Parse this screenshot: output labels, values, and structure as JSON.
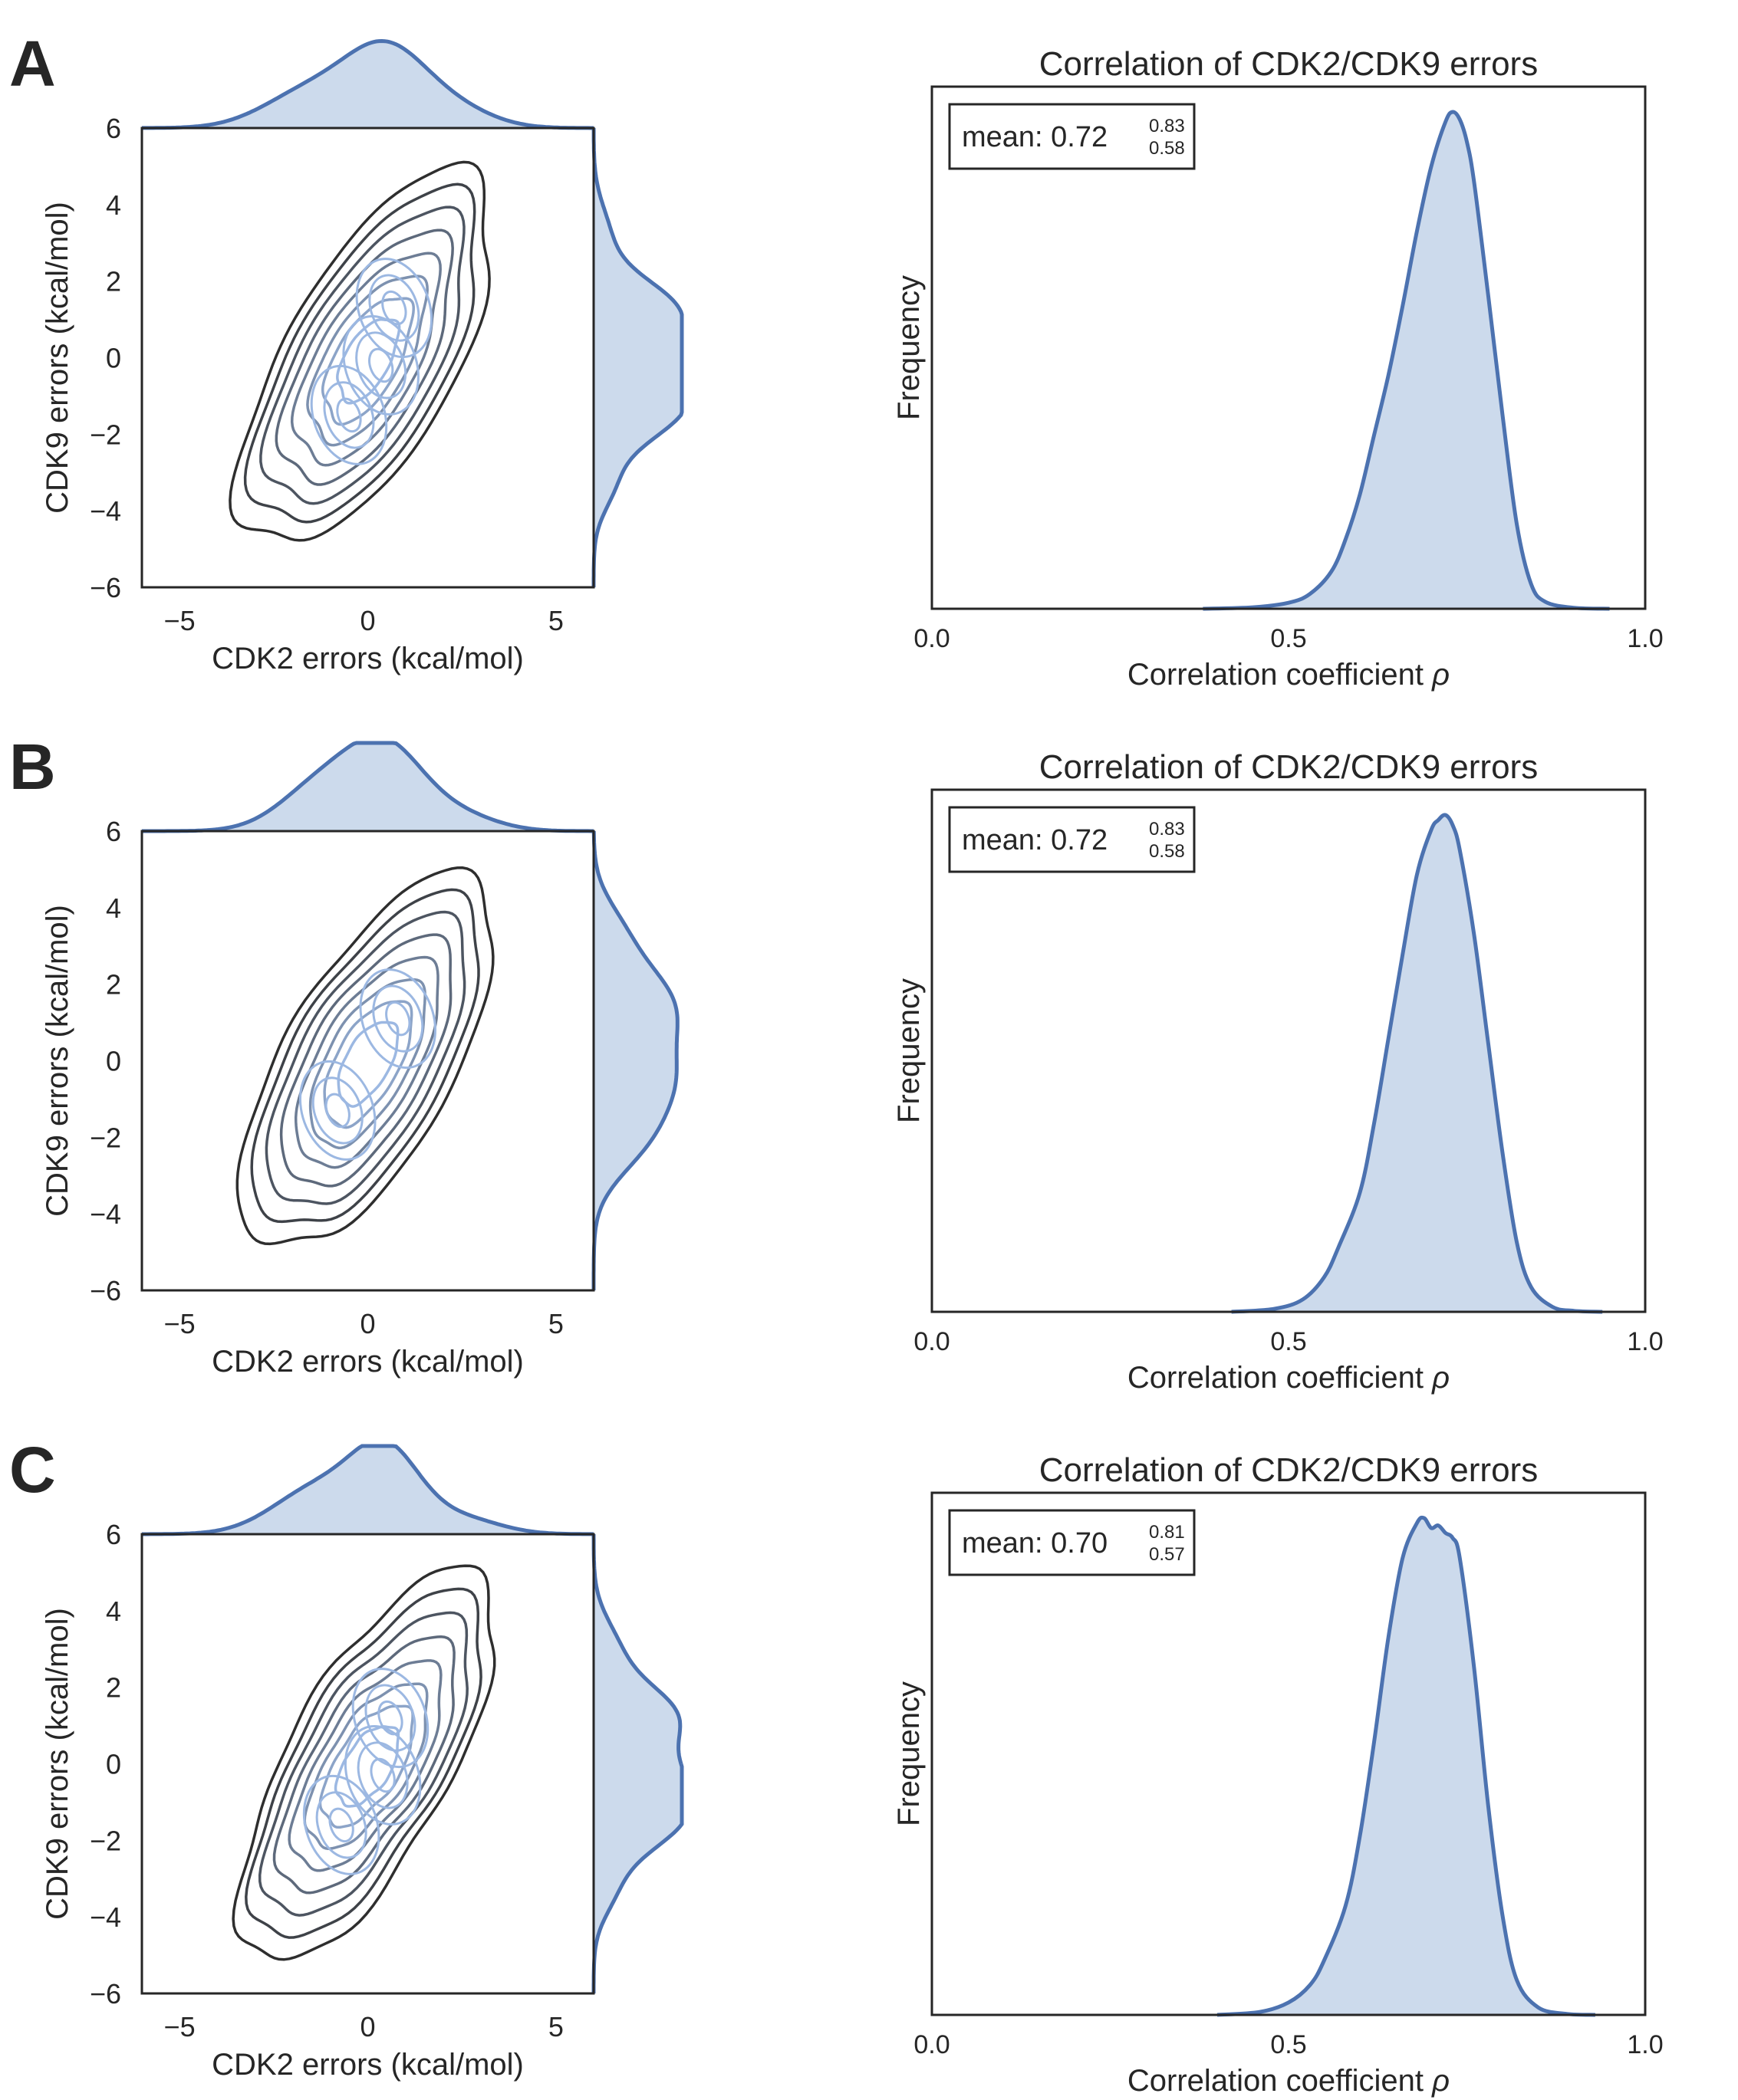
{
  "panels": [
    {
      "letter": "A",
      "jointplot": {
        "xlabel": "CDK2 errors (kcal/mol)",
        "ylabel": "CDK9 errors (kcal/mol)",
        "xticks": [
          "−5",
          "0",
          "5"
        ],
        "yticks": [
          "6",
          "4",
          "2",
          "0",
          "−2",
          "−4",
          "−6"
        ]
      },
      "histogram": {
        "title": "Correlation of CDK2/CDK9 errors",
        "xlabel": "Correlation coefficient",
        "xlabel_symbol": "ρ",
        "ylabel": "Frequency",
        "xticks": [
          "0.0",
          "0.5",
          "1.0"
        ],
        "mean_prefix": "mean: ",
        "mean": "0.72",
        "upper": "0.83",
        "lower": "0.58"
      }
    },
    {
      "letter": "B",
      "jointplot": {
        "xlabel": "CDK2 errors (kcal/mol)",
        "ylabel": "CDK9 errors (kcal/mol)",
        "xticks": [
          "−5",
          "0",
          "5"
        ],
        "yticks": [
          "6",
          "4",
          "2",
          "0",
          "−2",
          "−4",
          "−6"
        ]
      },
      "histogram": {
        "title": "Correlation of CDK2/CDK9 errors",
        "xlabel": "Correlation coefficient",
        "xlabel_symbol": "ρ",
        "ylabel": "Frequency",
        "xticks": [
          "0.0",
          "0.5",
          "1.0"
        ],
        "mean_prefix": "mean: ",
        "mean": "0.72",
        "upper": "0.83",
        "lower": "0.58"
      }
    },
    {
      "letter": "C",
      "jointplot": {
        "xlabel": "CDK2 errors (kcal/mol)",
        "ylabel": "CDK9 errors (kcal/mol)",
        "xticks": [
          "−5",
          "0",
          "5"
        ],
        "yticks": [
          "6",
          "4",
          "2",
          "0",
          "−2",
          "−4",
          "−6"
        ]
      },
      "histogram": {
        "title": "Correlation of CDK2/CDK9 errors",
        "xlabel": "Correlation coefficient",
        "xlabel_symbol": "ρ",
        "ylabel": "Frequency",
        "xticks": [
          "0.0",
          "0.5",
          "1.0"
        ],
        "mean_prefix": "mean: ",
        "mean": "0.70",
        "upper": "0.81",
        "lower": "0.57"
      }
    }
  ],
  "colors": {
    "line": "#4c72b0",
    "fill": "#ccdaec",
    "dark_contour": "#2e2e2e",
    "light_contour": "#9cb8e2",
    "axis": "#262626"
  },
  "chart_data": [
    {
      "type": "kde-contour-jointplot",
      "panel": "A",
      "xlabel": "CDK2 errors (kcal/mol)",
      "ylabel": "CDK9 errors (kcal/mol)",
      "xlim": [
        -6,
        6
      ],
      "ylim": [
        -6,
        6
      ],
      "xticks": [
        -5,
        0,
        5
      ],
      "yticks": [
        6,
        4,
        2,
        0,
        -2,
        -4,
        -6
      ],
      "contour_levels": 8,
      "modes": [
        {
          "x": 0.7,
          "y": 1.3
        },
        {
          "x": 0.35,
          "y": -0.2
        },
        {
          "x": -0.5,
          "y": -1.5
        }
      ],
      "correlation_direction": "positive"
    },
    {
      "type": "area",
      "panel": "A",
      "title": "Correlation of CDK2/CDK9 errors",
      "xlabel": "Correlation coefficient ρ",
      "ylabel": "Frequency",
      "xlim": [
        0.0,
        1.0
      ],
      "xticks": [
        0.0,
        0.5,
        1.0
      ],
      "x": [
        0.38,
        0.45,
        0.5,
        0.53,
        0.56,
        0.58,
        0.6,
        0.62,
        0.64,
        0.66,
        0.68,
        0.7,
        0.72,
        0.73,
        0.74,
        0.75,
        0.76,
        0.78,
        0.8,
        0.82,
        0.84,
        0.86,
        0.9,
        0.95
      ],
      "y": [
        0.0,
        0.003,
        0.012,
        0.03,
        0.075,
        0.14,
        0.23,
        0.35,
        0.47,
        0.61,
        0.76,
        0.89,
        0.98,
        1.0,
        0.985,
        0.94,
        0.86,
        0.63,
        0.39,
        0.17,
        0.05,
        0.014,
        0.002,
        0.0
      ],
      "annotation": {
        "mean": 0.72,
        "upper": 0.83,
        "lower": 0.58
      }
    },
    {
      "type": "kde-contour-jointplot",
      "panel": "B",
      "xlabel": "CDK2 errors (kcal/mol)",
      "ylabel": "CDK9 errors (kcal/mol)",
      "xlim": [
        -6,
        6
      ],
      "ylim": [
        -6,
        6
      ],
      "xticks": [
        -5,
        0,
        5
      ],
      "yticks": [
        6,
        4,
        2,
        0,
        -2,
        -4,
        -6
      ],
      "contour_levels": 8,
      "modes": [
        {
          "x": 0.8,
          "y": 1.1
        },
        {
          "x": -0.8,
          "y": -1.3
        }
      ],
      "correlation_direction": "positive"
    },
    {
      "type": "area",
      "panel": "B",
      "title": "Correlation of CDK2/CDK9 errors",
      "xlabel": "Correlation coefficient ρ",
      "ylabel": "Frequency",
      "xlim": [
        0.0,
        1.0
      ],
      "xticks": [
        0.0,
        0.5,
        1.0
      ],
      "x": [
        0.42,
        0.48,
        0.52,
        0.55,
        0.57,
        0.6,
        0.62,
        0.64,
        0.66,
        0.68,
        0.7,
        0.71,
        0.72,
        0.73,
        0.74,
        0.76,
        0.78,
        0.8,
        0.82,
        0.84,
        0.87,
        0.9,
        0.94
      ],
      "y": [
        0.0,
        0.006,
        0.025,
        0.07,
        0.13,
        0.24,
        0.38,
        0.55,
        0.72,
        0.88,
        0.97,
        0.99,
        1.0,
        0.98,
        0.93,
        0.76,
        0.54,
        0.32,
        0.14,
        0.05,
        0.01,
        0.002,
        0.0
      ],
      "annotation": {
        "mean": 0.72,
        "upper": 0.83,
        "lower": 0.58
      }
    },
    {
      "type": "kde-contour-jointplot",
      "panel": "C",
      "xlabel": "CDK2 errors (kcal/mol)",
      "ylabel": "CDK9 errors (kcal/mol)",
      "xlim": [
        -6,
        6
      ],
      "ylim": [
        -6,
        6
      ],
      "xticks": [
        -5,
        0,
        5
      ],
      "yticks": [
        6,
        4,
        2,
        0,
        -2,
        -4,
        -6
      ],
      "contour_levels": 8,
      "modes": [
        {
          "x": 0.6,
          "y": 1.2
        },
        {
          "x": 0.4,
          "y": -0.3
        },
        {
          "x": -0.7,
          "y": -1.6
        }
      ],
      "correlation_direction": "positive"
    },
    {
      "type": "area",
      "panel": "C",
      "title": "Correlation of CDK2/CDK9 errors",
      "xlabel": "Correlation coefficient ρ",
      "ylabel": "Frequency",
      "xlim": [
        0.0,
        1.0
      ],
      "xticks": [
        0.0,
        0.5,
        1.0
      ],
      "x": [
        0.4,
        0.46,
        0.5,
        0.53,
        0.55,
        0.58,
        0.6,
        0.62,
        0.64,
        0.66,
        0.68,
        0.69,
        0.7,
        0.71,
        0.72,
        0.73,
        0.74,
        0.76,
        0.78,
        0.8,
        0.82,
        0.85,
        0.89,
        0.93
      ],
      "y": [
        0.0,
        0.006,
        0.025,
        0.06,
        0.11,
        0.22,
        0.36,
        0.55,
        0.76,
        0.92,
        0.99,
        1.0,
        0.98,
        0.985,
        0.97,
        0.96,
        0.92,
        0.7,
        0.42,
        0.2,
        0.07,
        0.015,
        0.002,
        0.0
      ],
      "annotation": {
        "mean": 0.7,
        "upper": 0.81,
        "lower": 0.57
      }
    }
  ]
}
